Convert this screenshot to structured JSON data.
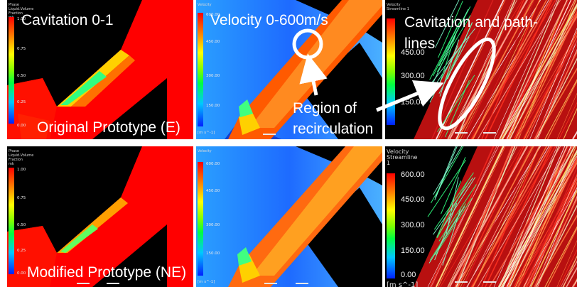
{
  "top_row": {
    "cavitation_panel": {
      "legend_title": "Phase Liquid.Volume Fraction\nmk",
      "ticks": [
        "1.00",
        "0.75",
        "0.50",
        "0.25",
        "0.00"
      ],
      "caption": "Cavitation 0-1"
    },
    "velocity_panel": {
      "legend_title": "Velocity",
      "ticks": [
        "600.00",
        "450.00",
        "300.00",
        "150.00"
      ],
      "unit": "[m s^-1]",
      "caption": "Velocity 0-600m/s"
    },
    "streamline_panel": {
      "legend_title": "Velocity\nStreamline 1",
      "ticks": [
        "450.00",
        "300.00",
        "150.00"
      ],
      "caption": "Cavitation and path-\nlines"
    },
    "row_label": "Original Prototype (E)",
    "annotation": "Region of\nrecirculation"
  },
  "bottom_row": {
    "cavitation_panel": {
      "legend_title": "Phase Liquid.Volume Fraction\nmk",
      "ticks": [
        "1.00",
        "0.75",
        "0.50",
        "0.25",
        "0.00"
      ]
    },
    "velocity_panel": {
      "legend_title": "Velocity",
      "ticks": [
        "600.00",
        "450.00",
        "300.00",
        "150.00"
      ],
      "unit": "[m s^-1]"
    },
    "streamline_panel": {
      "legend_title": "Velocity\nStreamline 1",
      "ticks": [
        "600.00",
        "450.00",
        "300.00",
        "150.00",
        "0.00"
      ],
      "unit": "[m s^-1]"
    },
    "row_label": "Modified Prototype (NE)"
  },
  "colors": {
    "liquid": "#ff0000",
    "background": "#000000",
    "velocity_high": "#ff5a00",
    "velocity_low": "#1e6bff",
    "annotation": "#ffffff"
  }
}
